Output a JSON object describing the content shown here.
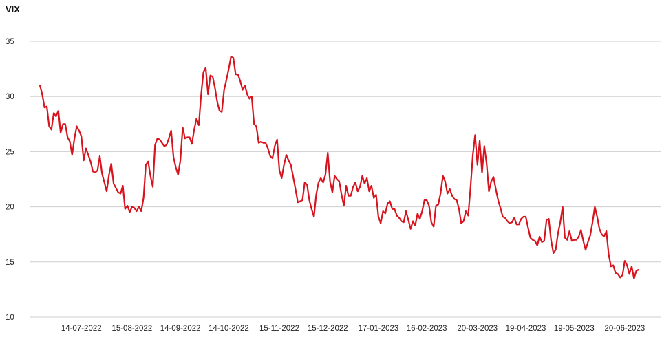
{
  "chart_data": {
    "type": "line",
    "title": "",
    "xlabel": "",
    "ylabel": "VIX",
    "ylim": [
      10,
      35
    ],
    "yticks": [
      10,
      15,
      20,
      25,
      30,
      35
    ],
    "xtick_labels": [
      "14-07-2022",
      "15-08-2022",
      "14-09-2022",
      "14-10-2022",
      "15-11-2022",
      "15-12-2022",
      "17-01-2023",
      "16-02-2023",
      "20-03-2023",
      "19-04-2023",
      "19-05-2023",
      "20-06-2023"
    ],
    "xtick_index": [
      18,
      40,
      61,
      82,
      104,
      125,
      147,
      168,
      190,
      211,
      232,
      254
    ],
    "grid": "horizontal",
    "line_color": "#d7141e",
    "series": [
      {
        "values": [
          31.0,
          30.2,
          29.0,
          29.1,
          27.3,
          27.0,
          28.5,
          28.2,
          28.7,
          26.7,
          27.5,
          27.5,
          26.3,
          25.9,
          24.7,
          26.2,
          27.3,
          26.9,
          26.4,
          24.2,
          25.3,
          24.7,
          24.1,
          23.2,
          23.1,
          23.3,
          24.6,
          23.0,
          22.2,
          21.4,
          22.9,
          23.9,
          22.1,
          21.7,
          21.3,
          21.2,
          21.9,
          19.8,
          20.1,
          19.5,
          20.0,
          19.9,
          19.6,
          20.0,
          19.6,
          20.8,
          23.8,
          24.1,
          22.8,
          21.8,
          25.6,
          26.2,
          26.1,
          25.8,
          25.5,
          25.6,
          26.2,
          26.9,
          24.5,
          23.6,
          22.9,
          24.2,
          27.2,
          26.2,
          26.3,
          26.3,
          25.7,
          27.0,
          28.0,
          27.4,
          30.1,
          32.2,
          32.6,
          30.2,
          31.9,
          31.8,
          30.8,
          29.5,
          28.7,
          28.6,
          30.6,
          31.5,
          32.5,
          33.6,
          33.5,
          32.0,
          32.0,
          31.4,
          30.6,
          31.0,
          30.2,
          29.8,
          30.0,
          27.5,
          27.3,
          25.8,
          25.9,
          25.8,
          25.8,
          25.3,
          24.6,
          24.4,
          25.5,
          26.1,
          23.3,
          22.6,
          23.8,
          24.7,
          24.2,
          23.8,
          22.7,
          21.6,
          20.4,
          20.5,
          20.6,
          22.2,
          22.0,
          20.6,
          19.8,
          19.1,
          21.1,
          22.2,
          22.6,
          22.2,
          22.9,
          24.9,
          22.3,
          21.3,
          22.8,
          22.5,
          22.3,
          21.1,
          20.1,
          21.9,
          21.0,
          21.0,
          21.8,
          22.2,
          21.4,
          21.8,
          22.8,
          22.1,
          22.6,
          21.4,
          21.9,
          20.8,
          21.1,
          19.1,
          18.5,
          19.6,
          19.4,
          20.3,
          20.5,
          19.8,
          19.8,
          19.2,
          19.0,
          18.7,
          18.6,
          19.6,
          18.8,
          18.0,
          18.7,
          18.3,
          19.4,
          18.9,
          19.6,
          20.6,
          20.6,
          20.1,
          18.6,
          18.2,
          20.1,
          20.2,
          21.2,
          22.8,
          22.3,
          21.2,
          21.6,
          21.0,
          20.7,
          20.6,
          19.8,
          18.5,
          18.7,
          19.6,
          19.2,
          21.7,
          24.7,
          26.5,
          23.8,
          26.0,
          23.1,
          25.5,
          23.9,
          21.4,
          22.3,
          22.7,
          21.6,
          20.6,
          19.9,
          19.1,
          19.0,
          18.7,
          18.5,
          18.6,
          19.0,
          18.4,
          18.4,
          18.9,
          19.1,
          19.1,
          18.1,
          17.2,
          17.0,
          16.9,
          16.5,
          17.3,
          16.8,
          16.9,
          18.8,
          18.9,
          17.0,
          15.8,
          16.1,
          17.6,
          18.6,
          20.0,
          17.2,
          17.0,
          17.8,
          16.9,
          17.0,
          17.0,
          17.3,
          17.9,
          16.9,
          16.1,
          16.8,
          17.4,
          18.6,
          20.0,
          19.1,
          18.0,
          17.5,
          17.3,
          17.8,
          15.7,
          14.6,
          14.7,
          14.0,
          13.9,
          13.6,
          13.8,
          15.1,
          14.7,
          13.9,
          14.6,
          13.5,
          14.2,
          14.3
        ]
      }
    ]
  }
}
